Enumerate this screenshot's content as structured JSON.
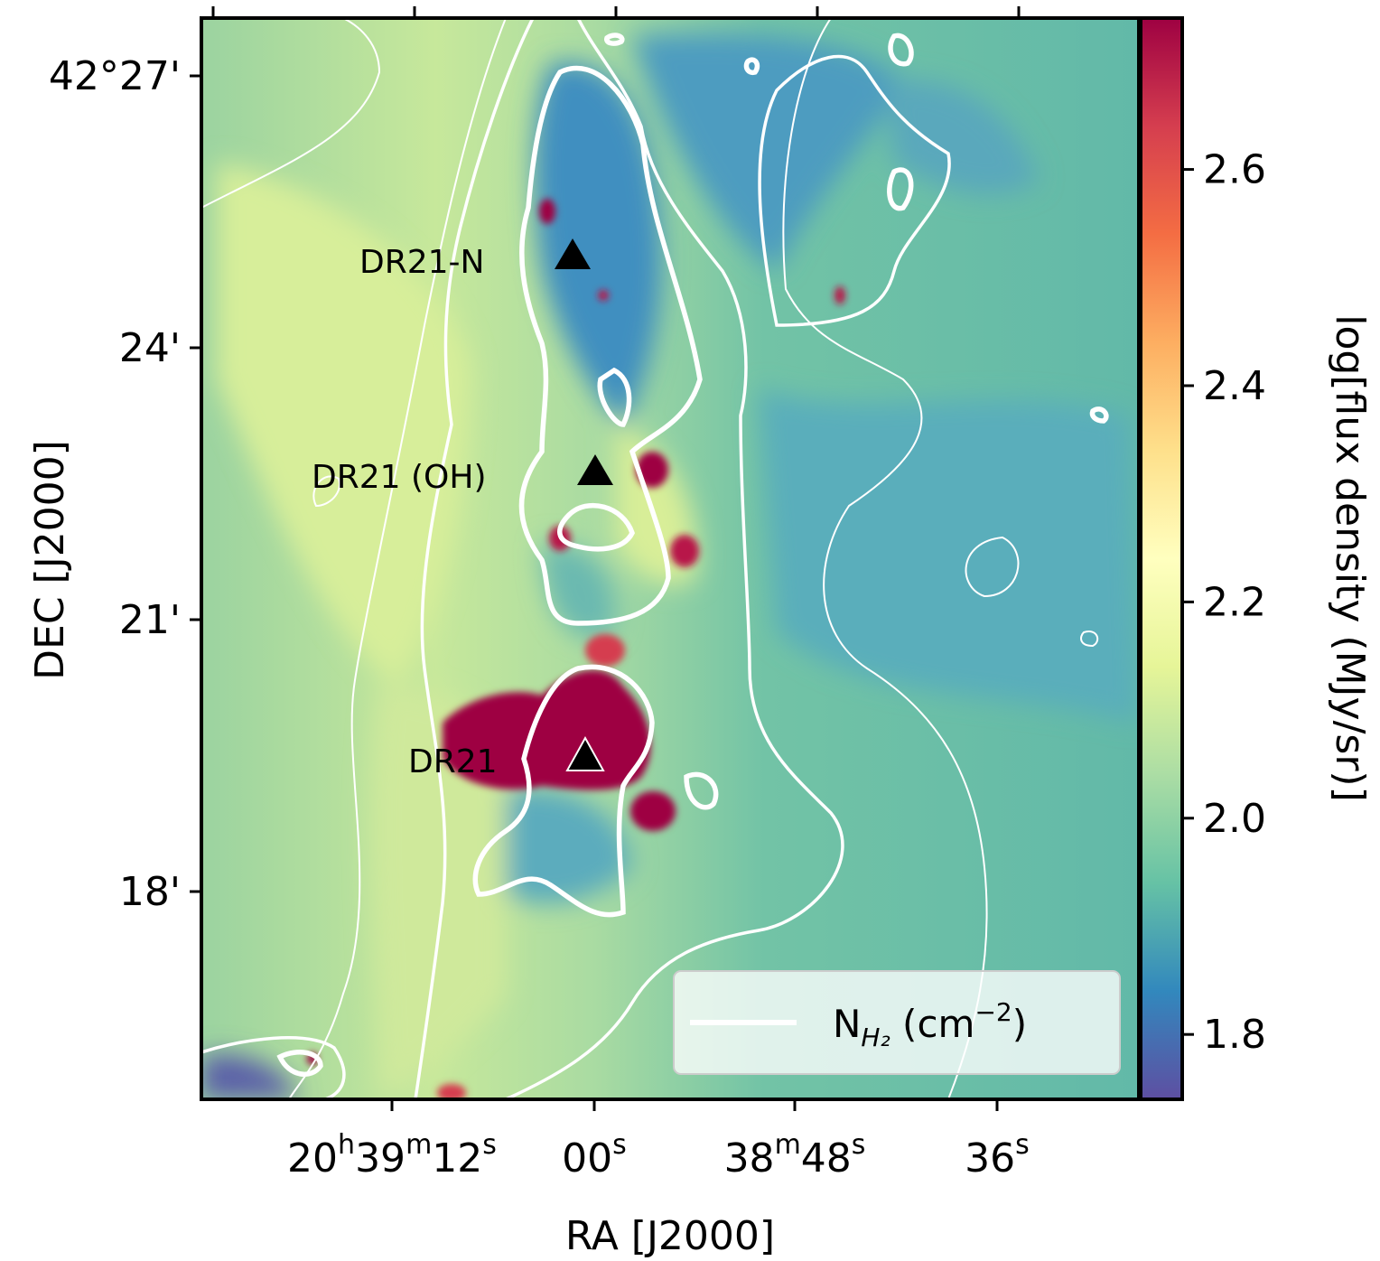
{
  "chart_data": {
    "type": "heatmap",
    "xlabel": "RA [J2000]",
    "ylabel": "DEC [J2000]",
    "colorbar_label": "log[flux density (MJy/sr)]",
    "colorbar": {
      "range": [
        1.74,
        2.74
      ],
      "ticks": [
        1.8,
        2.0,
        2.2,
        2.4,
        2.6
      ],
      "tick_labels": [
        "1.8",
        "2.0",
        "2.2",
        "2.4",
        "2.6"
      ],
      "colormap": "Spectral_r",
      "colors": [
        "#5e4fa2",
        "#3288bd",
        "#66c2a5",
        "#abdda4",
        "#e6f598",
        "#ffffbf",
        "#fee08b",
        "#fdae61",
        "#f46d43",
        "#d53e4f",
        "#9e0142"
      ]
    },
    "x_ticks": [
      {
        "hms": [
          "20",
          "39",
          "12"
        ],
        "labels": [
          "20",
          "h",
          "39",
          "m",
          "12",
          "s"
        ]
      },
      {
        "hms": [
          "20",
          "39",
          "00"
        ],
        "labels": [
          "00",
          "s"
        ]
      },
      {
        "hms": [
          "20",
          "38",
          "48"
        ],
        "labels": [
          "38",
          "m",
          "48",
          "s"
        ]
      },
      {
        "hms": [
          "20",
          "38",
          "36"
        ],
        "labels": [
          "36",
          "s"
        ]
      }
    ],
    "y_ticks": [
      "42°27'",
      "24'",
      "21'",
      "18'"
    ],
    "sources": [
      {
        "name": "DR21-N",
        "label": "DR21-N",
        "ra": "20:39:01",
        "dec": "42:25:55"
      },
      {
        "name": "DR21 (OH)",
        "label": "DR21 (OH)",
        "ra": "20:39:00",
        "dec": "42:22:35"
      },
      {
        "name": "DR21",
        "label": "DR21",
        "ra": "20:39:01",
        "dec": "42:19:30"
      }
    ],
    "legend": {
      "entry": "N",
      "sub": "H₂",
      "unit_pre": " (cm",
      "unit_sup": "−2",
      "unit_post": ")",
      "placement": "lower right"
    },
    "contours": "N_H2 column density, white lines"
  }
}
